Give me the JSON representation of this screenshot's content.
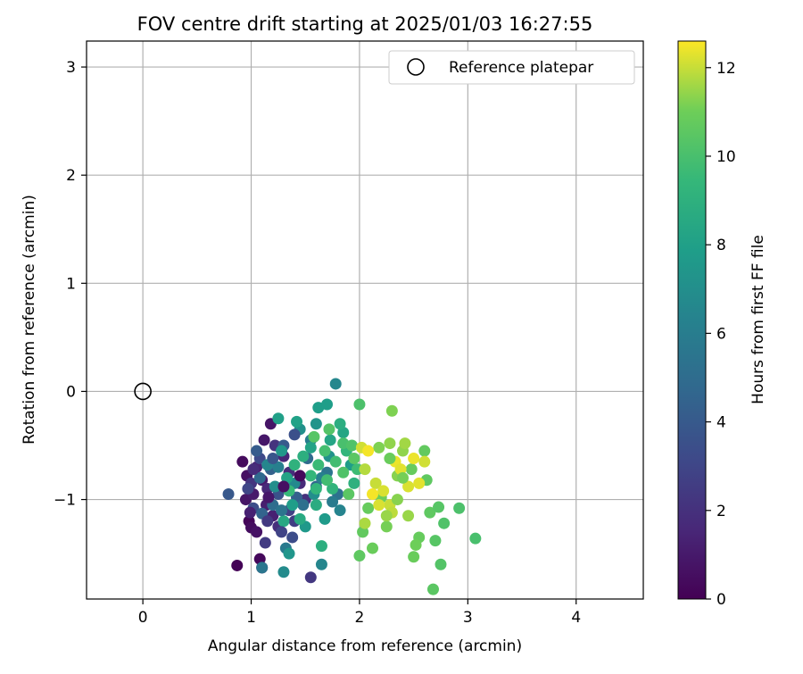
{
  "chart_data": {
    "type": "scatter",
    "title": "FOV centre drift starting at 2025/01/03 16:27:55",
    "xlabel": "Angular distance from reference (arcmin)",
    "ylabel": "Rotation from reference (arcmin)",
    "xlim": [
      -0.52,
      4.62
    ],
    "ylim": [
      -1.92,
      3.24
    ],
    "xticks": [
      0,
      1,
      2,
      3,
      4
    ],
    "yticks": [
      -1,
      0,
      1,
      2,
      3
    ],
    "xtick_labels": [
      "0",
      "1",
      "2",
      "3",
      "4"
    ],
    "ytick_labels": [
      "−1",
      "0",
      "1",
      "2",
      "3"
    ],
    "grid": true,
    "legend": {
      "placement": "top-right",
      "label": "Reference platepar"
    },
    "reference_point": {
      "x": 0,
      "y": 0
    },
    "colorbar": {
      "label": "Hours from first FF file",
      "range": [
        0,
        12.6
      ],
      "ticks": [
        0,
        2,
        4,
        6,
        8,
        10,
        12
      ],
      "tick_labels": [
        "0",
        "2",
        "4",
        "6",
        "8",
        "10",
        "12"
      ],
      "colormap": "viridis"
    },
    "series": [
      {
        "points": [
          [
            0.87,
            -1.61,
            0.1
          ],
          [
            0.92,
            -0.65,
            0.4
          ],
          [
            0.96,
            -0.78,
            0.6
          ],
          [
            0.98,
            -1.2,
            0.2
          ],
          [
            1.0,
            -1.26,
            0.5
          ],
          [
            0.95,
            -1.0,
            0.8
          ],
          [
            1.02,
            -0.95,
            1.0
          ],
          [
            1.05,
            -1.3,
            0.7
          ],
          [
            1.08,
            -1.55,
            0.3
          ],
          [
            1.1,
            -1.63,
            0.5
          ],
          [
            1.12,
            -0.45,
            0.9
          ],
          [
            1.14,
            -1.05,
            1.2
          ],
          [
            1.18,
            -0.3,
            0.8
          ],
          [
            1.05,
            -0.7,
            1.4
          ],
          [
            1.1,
            -0.82,
            1.1
          ],
          [
            1.15,
            -0.9,
            1.6
          ],
          [
            1.2,
            -1.15,
            1.3
          ],
          [
            1.25,
            -1.25,
            1.9
          ],
          [
            1.3,
            -0.6,
            1.5
          ],
          [
            1.35,
            -0.75,
            1.8
          ],
          [
            1.22,
            -0.5,
            2.1
          ],
          [
            1.45,
            -0.85,
            1.7
          ],
          [
            1.5,
            -1.0,
            2.0
          ],
          [
            1.55,
            -1.72,
            2.3
          ],
          [
            1.4,
            -1.2,
            2.6
          ],
          [
            1.13,
            -1.4,
            2.5
          ],
          [
            1.35,
            -1.1,
            2.8
          ],
          [
            1.0,
            -0.85,
            2.2
          ],
          [
            0.97,
            -0.9,
            3.0
          ],
          [
            1.02,
            -1.08,
            3.4
          ],
          [
            1.08,
            -0.62,
            3.2
          ],
          [
            1.25,
            -0.95,
            3.6
          ],
          [
            1.38,
            -1.35,
            3.3
          ],
          [
            0.79,
            -0.95,
            3.9
          ],
          [
            1.05,
            -0.55,
            4.1
          ],
          [
            1.18,
            -0.72,
            4.4
          ],
          [
            1.3,
            -0.5,
            4.0
          ],
          [
            1.42,
            -0.98,
            4.3
          ],
          [
            1.6,
            -0.88,
            4.7
          ],
          [
            1.1,
            -1.13,
            4.5
          ],
          [
            1.2,
            -1.05,
            5.0
          ],
          [
            1.48,
            -1.05,
            5.2
          ],
          [
            1.52,
            -0.62,
            4.9
          ],
          [
            1.7,
            -0.75,
            5.5
          ],
          [
            1.8,
            -0.95,
            5.3
          ],
          [
            1.32,
            -1.45,
            5.8
          ],
          [
            1.1,
            -1.63,
            5.6
          ],
          [
            1.55,
            -0.45,
            6.0
          ],
          [
            1.65,
            -0.8,
            6.2
          ],
          [
            1.75,
            -1.02,
            5.9
          ],
          [
            1.82,
            -1.1,
            6.4
          ],
          [
            1.78,
            0.07,
            6.6
          ],
          [
            1.65,
            -1.6,
            6.5
          ],
          [
            1.3,
            -1.67,
            6.8
          ],
          [
            1.25,
            -0.7,
            6.1
          ],
          [
            1.4,
            -0.85,
            6.7
          ],
          [
            1.58,
            -0.95,
            7.0
          ],
          [
            1.72,
            -0.6,
            7.2
          ],
          [
            1.45,
            -0.35,
            7.1
          ],
          [
            1.6,
            -0.3,
            7.3
          ],
          [
            1.28,
            -0.55,
            7.5
          ],
          [
            1.35,
            -1.5,
            7.4
          ],
          [
            1.5,
            -1.25,
            7.6
          ],
          [
            1.68,
            -1.18,
            7.7
          ],
          [
            1.92,
            -0.68,
            7.8
          ],
          [
            1.62,
            -0.15,
            7.9
          ],
          [
            1.7,
            -0.12,
            7.9
          ],
          [
            1.25,
            -0.25,
            8.0
          ],
          [
            1.42,
            -0.28,
            8.1
          ],
          [
            1.55,
            -0.52,
            8.2
          ],
          [
            1.73,
            -0.45,
            8.3
          ],
          [
            1.85,
            -0.38,
            8.4
          ],
          [
            1.3,
            -1.2,
            8.5
          ],
          [
            1.45,
            -1.18,
            8.6
          ],
          [
            1.6,
            -1.05,
            8.7
          ],
          [
            1.82,
            -0.3,
            8.8
          ],
          [
            1.65,
            -1.43,
            8.9
          ],
          [
            1.95,
            -0.85,
            9.0
          ],
          [
            1.4,
            -0.68,
            9.1
          ],
          [
            1.75,
            -0.9,
            9.2
          ],
          [
            1.88,
            -0.55,
            9.3
          ],
          [
            1.55,
            -0.78,
            9.4
          ],
          [
            1.35,
            -0.92,
            9.5
          ],
          [
            1.62,
            -0.68,
            9.6
          ],
          [
            1.98,
            -0.72,
            9.7
          ],
          [
            1.78,
            -0.65,
            9.8
          ],
          [
            1.68,
            -0.55,
            9.9
          ],
          [
            1.85,
            -0.48,
            10.0
          ],
          [
            2.0,
            -0.12,
            10.1
          ],
          [
            1.93,
            -0.5,
            10.2
          ],
          [
            1.72,
            -0.35,
            10.3
          ],
          [
            1.58,
            -0.42,
            10.4
          ],
          [
            1.9,
            -0.95,
            10.5
          ],
          [
            2.0,
            -1.52,
            10.6
          ],
          [
            2.03,
            -1.3,
            10.7
          ],
          [
            2.08,
            -1.08,
            10.8
          ],
          [
            2.12,
            -1.45,
            10.9
          ],
          [
            2.2,
            -0.98,
            11.0
          ],
          [
            2.25,
            -1.25,
            11.1
          ],
          [
            2.3,
            -0.18,
            11.2
          ],
          [
            2.35,
            -0.78,
            11.3
          ],
          [
            2.4,
            -0.55,
            11.4
          ],
          [
            2.45,
            -1.15,
            11.5
          ],
          [
            2.5,
            -1.53,
            10.9
          ],
          [
            2.55,
            -1.35,
            10.8
          ],
          [
            2.6,
            -0.55,
            10.7
          ],
          [
            2.65,
            -1.12,
            10.6
          ],
          [
            2.68,
            -1.83,
            10.5
          ],
          [
            2.7,
            -1.38,
            10.4
          ],
          [
            2.75,
            -1.6,
            10.3
          ],
          [
            2.78,
            -1.22,
            10.2
          ],
          [
            2.92,
            -1.08,
            10.1
          ],
          [
            3.07,
            -1.36,
            10.0
          ],
          [
            2.73,
            -1.07,
            10.4
          ],
          [
            2.62,
            -0.82,
            10.6
          ],
          [
            2.48,
            -0.72,
            10.8
          ],
          [
            2.52,
            -1.42,
            11.0
          ],
          [
            2.18,
            -0.52,
            11.2
          ],
          [
            2.28,
            -0.48,
            11.4
          ],
          [
            2.42,
            -0.48,
            11.6
          ],
          [
            2.05,
            -0.72,
            11.8
          ],
          [
            2.15,
            -0.85,
            12.0
          ],
          [
            2.22,
            -0.92,
            12.2
          ],
          [
            2.33,
            -0.65,
            12.4
          ],
          [
            2.38,
            -0.72,
            12.3
          ],
          [
            2.02,
            -0.52,
            12.1
          ],
          [
            2.08,
            -0.55,
            12.5
          ],
          [
            2.28,
            -1.05,
            12.0
          ],
          [
            2.3,
            -1.12,
            11.9
          ],
          [
            2.45,
            -0.88,
            12.2
          ],
          [
            2.5,
            -0.62,
            12.4
          ],
          [
            2.55,
            -0.85,
            12.3
          ],
          [
            2.6,
            -0.65,
            12.1
          ],
          [
            2.12,
            -0.95,
            12.5
          ],
          [
            2.18,
            -1.05,
            12.2
          ],
          [
            2.05,
            -1.22,
            11.7
          ],
          [
            2.25,
            -1.15,
            11.5
          ],
          [
            2.35,
            -1.0,
            11.3
          ],
          [
            2.4,
            -0.8,
            11.1
          ],
          [
            2.28,
            -0.62,
            10.9
          ],
          [
            1.95,
            -0.62,
            10.5
          ],
          [
            1.85,
            -0.75,
            10.2
          ],
          [
            1.7,
            -0.82,
            9.8
          ],
          [
            1.6,
            -0.9,
            9.3
          ],
          [
            1.48,
            -0.6,
            8.9
          ],
          [
            1.33,
            -0.8,
            8.2
          ],
          [
            1.38,
            -1.05,
            7.9
          ],
          [
            1.22,
            -0.88,
            7.0
          ],
          [
            1.15,
            -0.68,
            6.5
          ],
          [
            1.28,
            -1.1,
            5.5
          ],
          [
            1.08,
            -0.8,
            4.8
          ],
          [
            1.2,
            -0.62,
            3.8
          ],
          [
            1.4,
            -0.4,
            3.5
          ],
          [
            1.28,
            -1.3,
            2.9
          ],
          [
            1.15,
            -1.2,
            2.4
          ],
          [
            1.02,
            -0.72,
            1.8
          ],
          [
            0.99,
            -1.12,
            1.3
          ],
          [
            1.16,
            -0.98,
            0.9
          ],
          [
            1.3,
            -0.88,
            0.6
          ],
          [
            1.45,
            -0.78,
            0.3
          ]
        ]
      }
    ]
  }
}
